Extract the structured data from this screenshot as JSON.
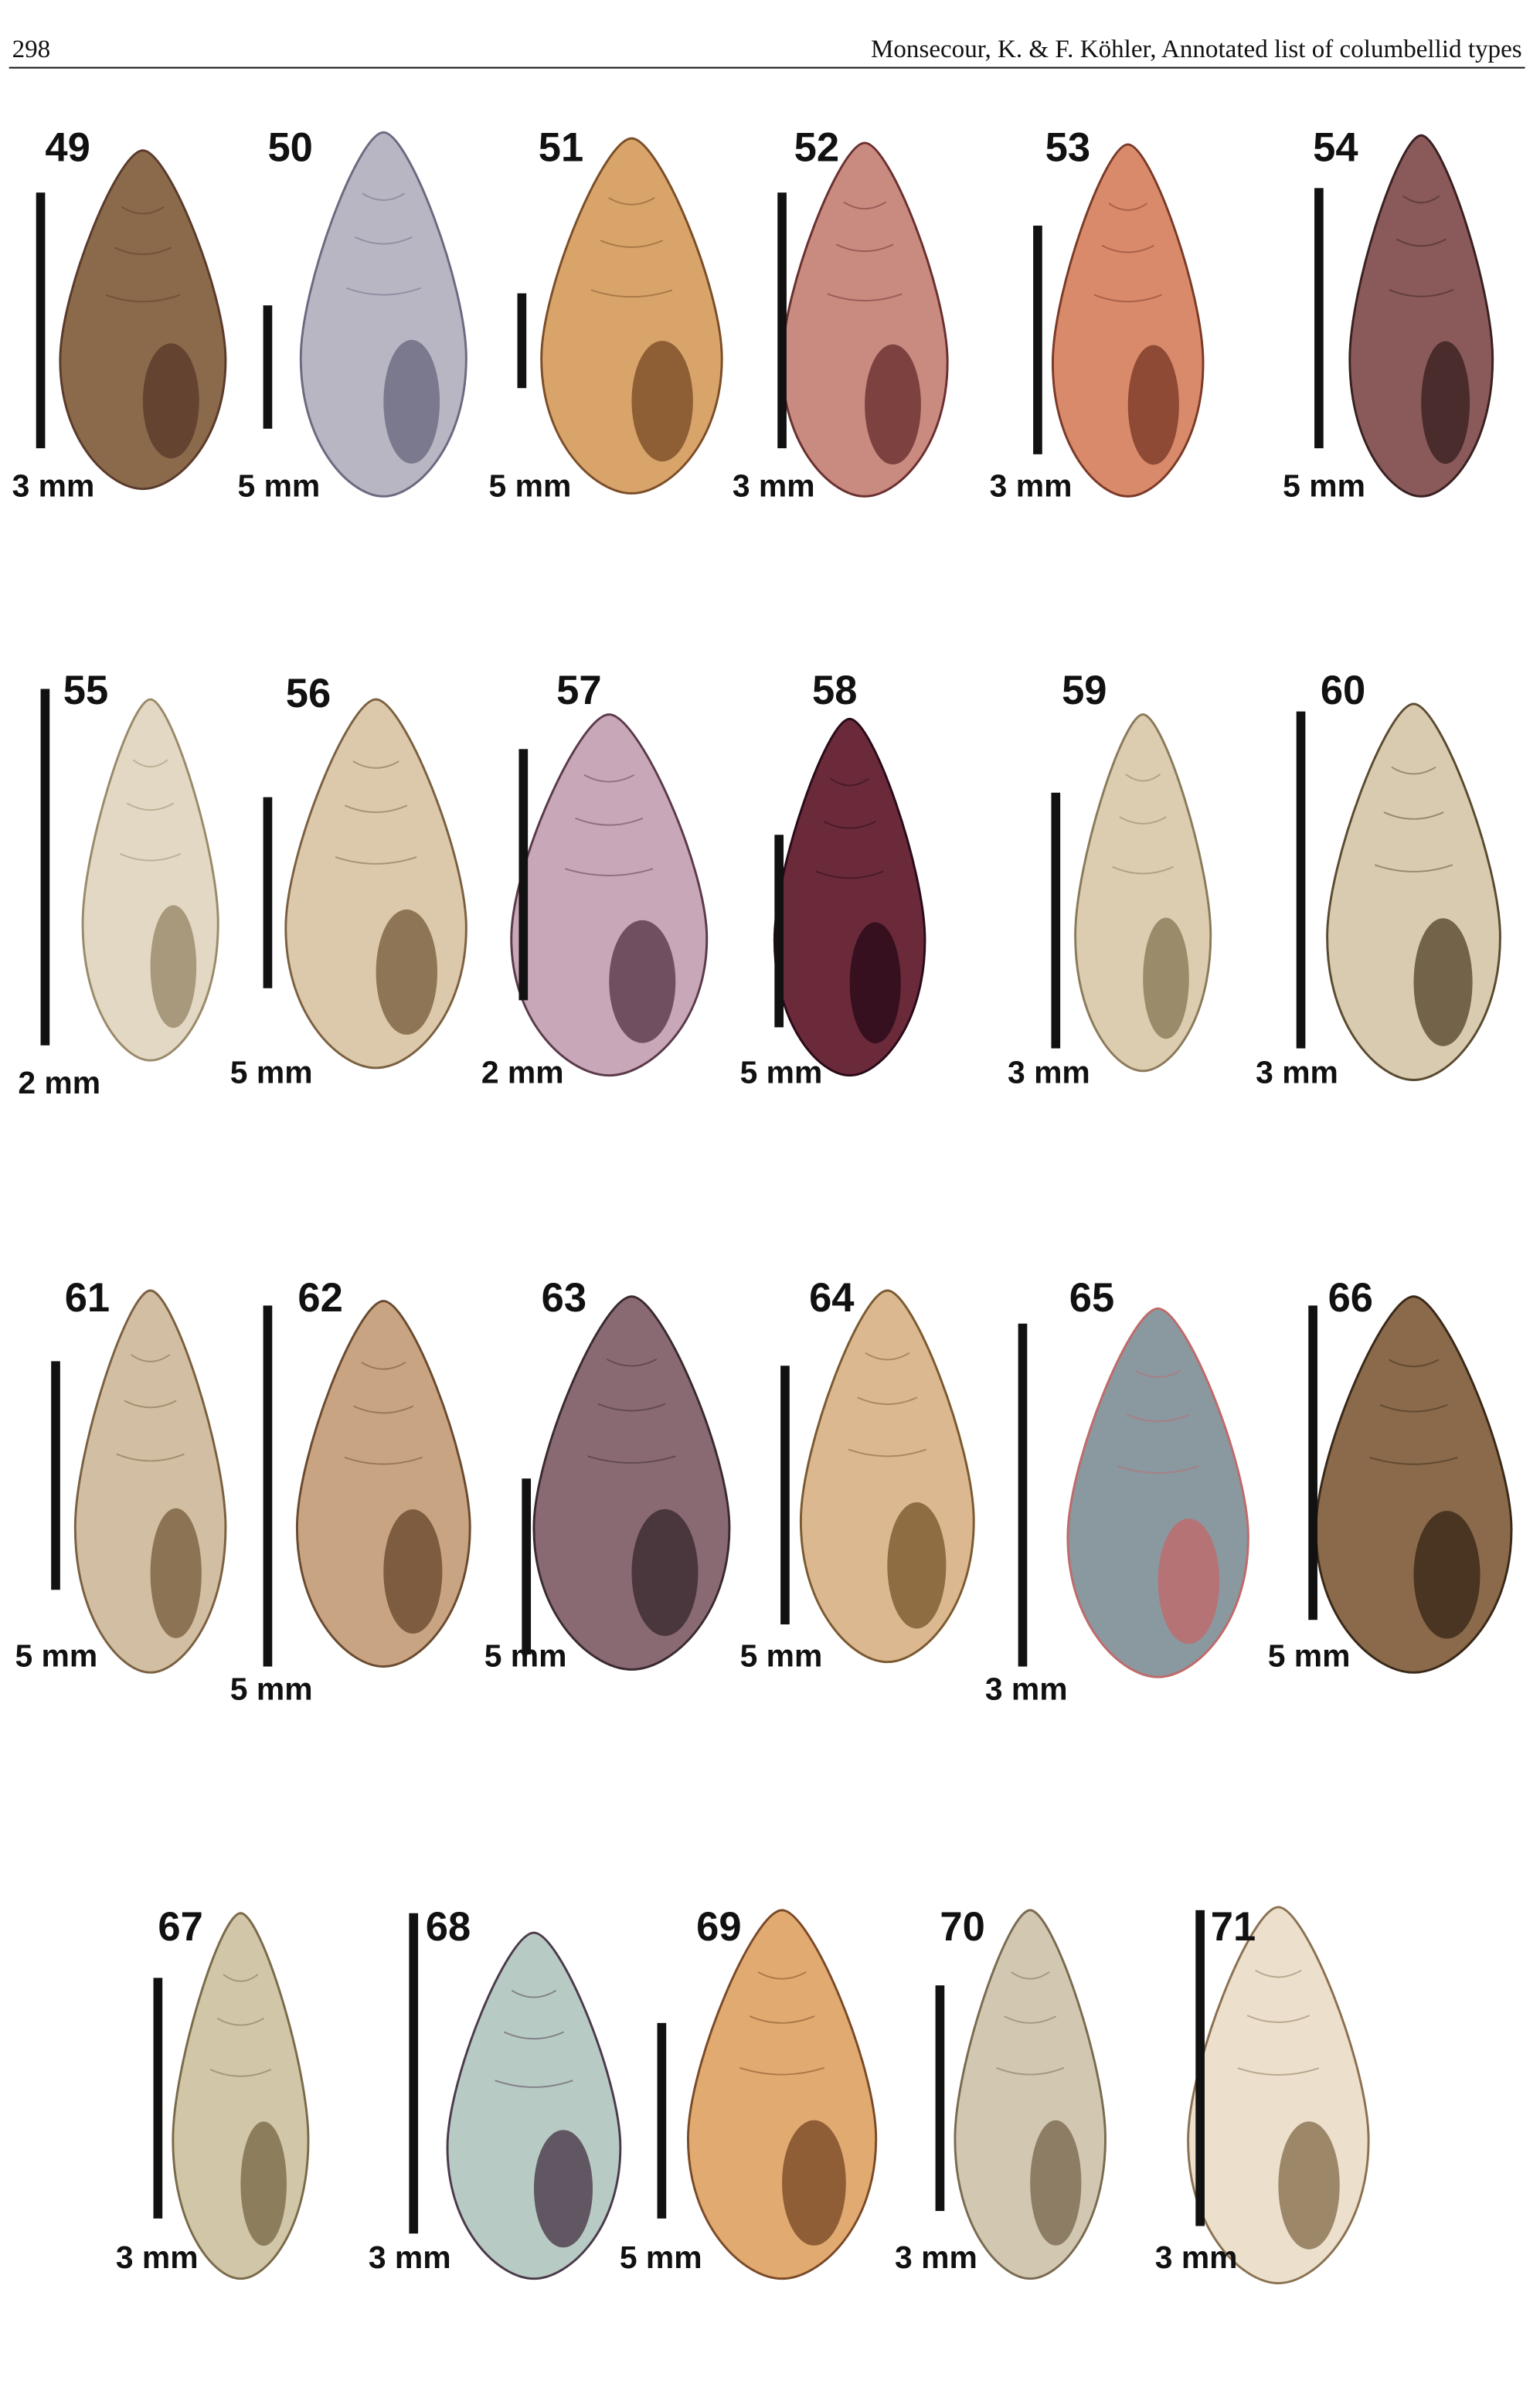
{
  "header": {
    "page_number": "298",
    "running_title": "Monsecour, K. & F. Köhler, Annotated list of columbellid types"
  },
  "figures": [
    {
      "number": "49",
      "scale": "3 mm"
    },
    {
      "number": "50",
      "scale": "5 mm"
    },
    {
      "number": "51",
      "scale": "5 mm"
    },
    {
      "number": "52",
      "scale": "3 mm"
    },
    {
      "number": "53",
      "scale": "3 mm"
    },
    {
      "number": "54",
      "scale": "5 mm"
    },
    {
      "number": "55",
      "scale": "2 mm"
    },
    {
      "number": "56",
      "scale": "5 mm"
    },
    {
      "number": "57",
      "scale": "2 mm"
    },
    {
      "number": "58",
      "scale": "5 mm"
    },
    {
      "number": "59",
      "scale": "3 mm"
    },
    {
      "number": "60",
      "scale": "3 mm"
    },
    {
      "number": "61",
      "scale": "5 mm"
    },
    {
      "number": "62",
      "scale": "5 mm"
    },
    {
      "number": "63",
      "scale": "5 mm"
    },
    {
      "number": "64",
      "scale": "5 mm"
    },
    {
      "number": "65",
      "scale": "3 mm"
    },
    {
      "number": "66",
      "scale": "5 mm"
    },
    {
      "number": "67",
      "scale": "3 mm"
    },
    {
      "number": "68",
      "scale": "3 mm"
    },
    {
      "number": "69",
      "scale": "5 mm"
    },
    {
      "number": "70",
      "scale": "3 mm"
    },
    {
      "number": "71",
      "scale": "3 mm"
    }
  ]
}
